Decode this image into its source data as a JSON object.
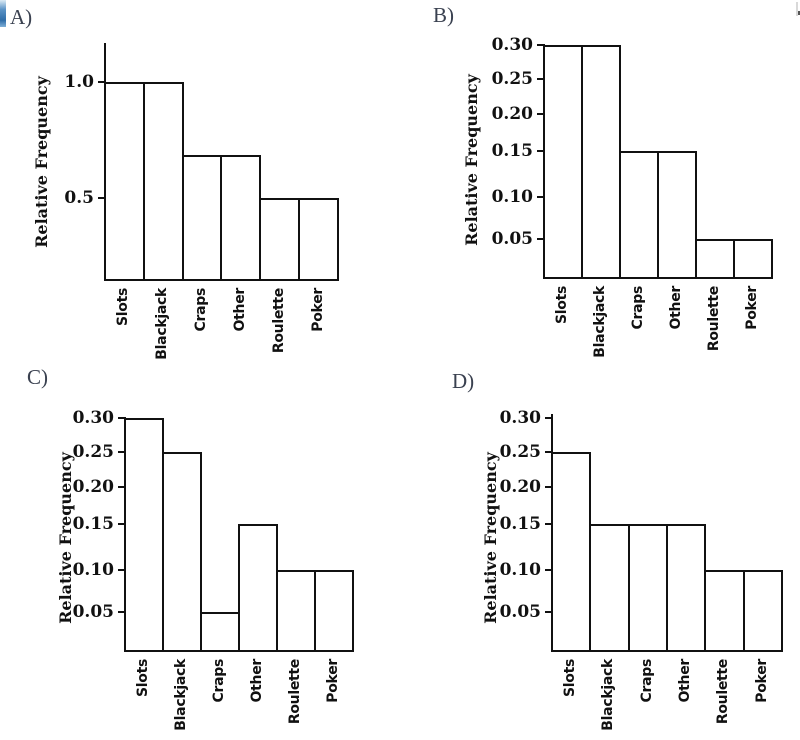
{
  "page": {
    "background": "#ffffff"
  },
  "colors": {
    "ink": "#111111",
    "bar_fill": "#ffffff",
    "panel_letter": "#3a4150",
    "bottom_left_fragment": "#2f6da8",
    "top_right_fragment": "#d9d9d9"
  },
  "chart_data": [
    {
      "type": "bar",
      "panel_label": "A)",
      "title": "",
      "xlabel": "",
      "ylabel": "Relative Frequency",
      "categories": [
        "Slots",
        "Blackjack",
        "Craps",
        "Other",
        "Roulette",
        "Poker"
      ],
      "values": [
        1.0,
        1.0,
        0.7,
        0.7,
        0.5,
        0.5
      ],
      "yticks": [
        {
          "label": "1.0",
          "value": 1.0
        },
        {
          "label": "0.5",
          "value": 0.5
        }
      ],
      "ylim": [
        0,
        1.2
      ],
      "grid": false,
      "legend": false
    },
    {
      "type": "bar",
      "panel_label": "B)",
      "title": "",
      "xlabel": "",
      "ylabel": "Relative Frequency",
      "categories": [
        "Slots",
        "Blackjack",
        "Craps",
        "Other",
        "Roulette",
        "Poker"
      ],
      "values": [
        0.3,
        0.3,
        0.15,
        0.15,
        0.05,
        0.05
      ],
      "yticks": [
        {
          "label": "0.30",
          "value": 0.3
        },
        {
          "label": "0.25",
          "value": 0.25
        },
        {
          "label": "0.20",
          "value": 0.2
        },
        {
          "label": "0.15",
          "value": 0.15
        },
        {
          "label": "0.10",
          "value": 0.1
        },
        {
          "label": "0.05",
          "value": 0.05
        }
      ],
      "ylim": [
        0,
        0.3
      ],
      "grid": false,
      "legend": false
    },
    {
      "type": "bar",
      "panel_label": "C)",
      "title": "",
      "xlabel": "",
      "ylabel": "Relative Frequency",
      "categories": [
        "Slots",
        "Blackjack",
        "Craps",
        "Other",
        "Roulette",
        "Poker"
      ],
      "values": [
        0.3,
        0.25,
        0.05,
        0.15,
        0.1,
        0.1
      ],
      "yticks": [
        {
          "label": "0.30",
          "value": 0.3
        },
        {
          "label": "0.25",
          "value": 0.25
        },
        {
          "label": "0.20",
          "value": 0.2
        },
        {
          "label": "0.15",
          "value": 0.15
        },
        {
          "label": "0.10",
          "value": 0.1
        },
        {
          "label": "0.05",
          "value": 0.05
        }
      ],
      "ylim": [
        0,
        0.3
      ],
      "grid": false,
      "legend": false
    },
    {
      "type": "bar",
      "panel_label": "D)",
      "title": "",
      "xlabel": "",
      "ylabel": "Relative Frequency",
      "categories": [
        "Slots",
        "Blackjack",
        "Craps",
        "Other",
        "Roulette",
        "Poker"
      ],
      "values": [
        0.25,
        0.15,
        0.15,
        0.15,
        0.1,
        0.1
      ],
      "yticks": [
        {
          "label": "0.30",
          "value": 0.3
        },
        {
          "label": "0.25",
          "value": 0.25
        },
        {
          "label": "0.20",
          "value": 0.2
        },
        {
          "label": "0.15",
          "value": 0.15
        },
        {
          "label": "0.10",
          "value": 0.1
        },
        {
          "label": "0.05",
          "value": 0.05
        }
      ],
      "ylim": [
        0,
        0.31
      ],
      "grid": false,
      "legend": false
    }
  ]
}
